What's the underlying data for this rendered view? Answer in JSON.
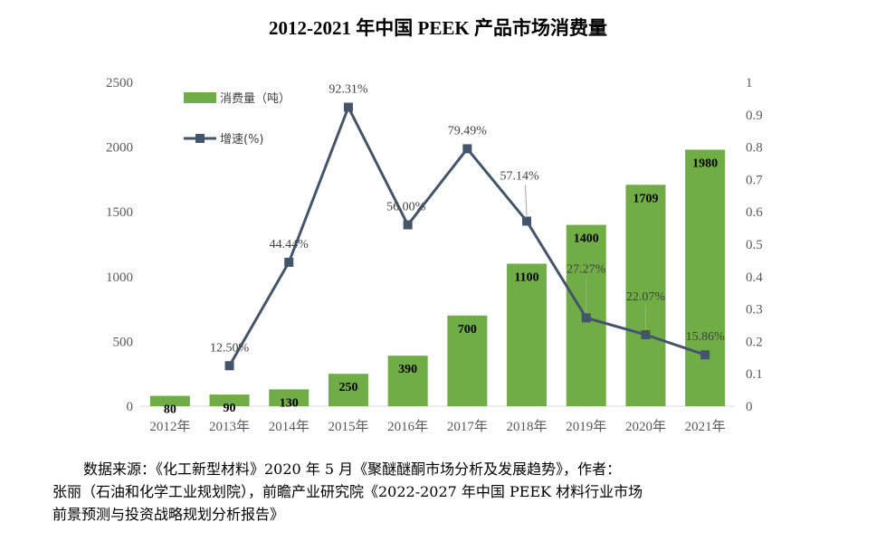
{
  "chart_data": {
    "type": "bar+line",
    "title": "2012-2021 年中国 PEEK 产品市场消费量",
    "categories": [
      "2012年",
      "2013年",
      "2014年",
      "2015年",
      "2016年",
      "2017年",
      "2018年",
      "2019年",
      "2020年",
      "2021年"
    ],
    "series": [
      {
        "name": "消费量（吨）",
        "type": "bar",
        "axis": "left",
        "color": "#70ad47",
        "values": [
          80,
          90,
          130,
          250,
          390,
          700,
          1100,
          1400,
          1709,
          1980
        ],
        "labels": [
          "80",
          "90",
          "130",
          "250",
          "390",
          "700",
          "1100",
          "1400",
          "1709",
          "1980"
        ]
      },
      {
        "name": "增速(%)",
        "type": "line",
        "axis": "right",
        "color": "#44546a",
        "values": [
          null,
          0.125,
          0.4444,
          0.9231,
          0.56,
          0.7949,
          0.5714,
          0.2727,
          0.2207,
          0.1586
        ],
        "labels": [
          null,
          "12.50%",
          "44.44%",
          "92.31%",
          "56.00%",
          "79.49%",
          "57.14%",
          "27.27%",
          "22.07%",
          "15.86%"
        ]
      }
    ],
    "y_left": {
      "min": 0,
      "max": 2500,
      "ticks": [
        "0",
        "500",
        "1000",
        "1500",
        "2000",
        "2500"
      ]
    },
    "y_right": {
      "min": 0,
      "max": 1,
      "ticks": [
        "0",
        "0.1",
        "0.2",
        "0.3",
        "0.4",
        "0.5",
        "0.6",
        "0.7",
        "0.8",
        "0.9",
        "1"
      ]
    },
    "legend": [
      "消费量（吨）",
      "增速(%)"
    ],
    "legend_position": "top-left"
  },
  "source": {
    "line1": "数据来源：《化工新型材料》2020 年 5 月《聚醚醚酮市场分析及发展趋势》，作者：",
    "line2": "张丽（石油和化学工业规划院），前瞻产业研究院《2022-2027 年中国 PEEK 材料行业市场",
    "line3": "前景预测与投资战略规划分析报告》"
  }
}
